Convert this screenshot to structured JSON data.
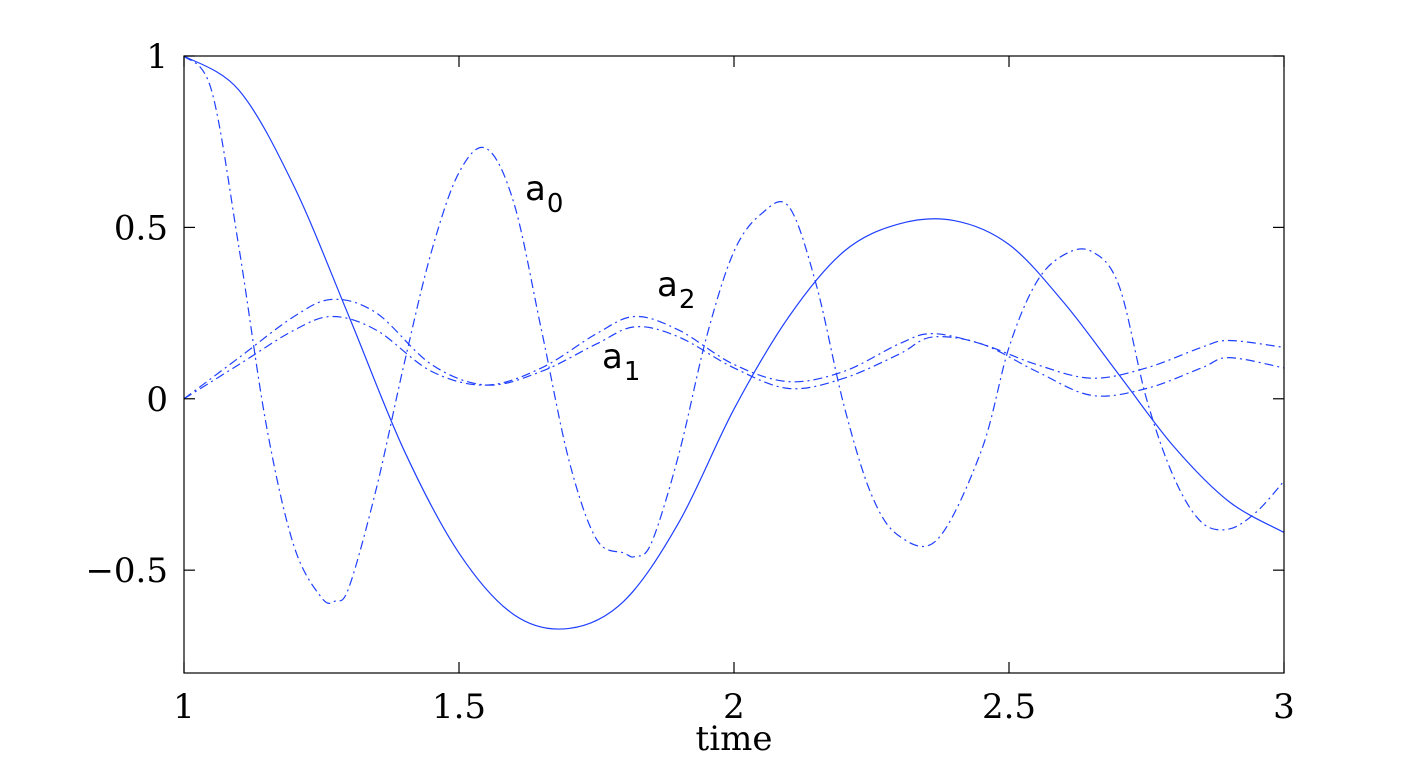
{
  "chart_data": {
    "type": "line",
    "xlabel": "time",
    "ylabel": "",
    "xlim": [
      1,
      3
    ],
    "ylim": [
      -0.8,
      1
    ],
    "xticks": [
      1,
      1.5,
      2,
      2.5,
      3
    ],
    "xtick_labels": [
      "1",
      "1.5",
      "2",
      "2.5",
      "3"
    ],
    "yticks": [
      -0.5,
      0,
      0.5,
      1
    ],
    "ytick_labels": [
      "−0.5",
      "0",
      "0.5",
      "1"
    ],
    "grid": false,
    "annotations": [
      {
        "text": "a",
        "sub": "0",
        "x": 1.62,
        "y": 0.58
      },
      {
        "text": "a",
        "sub": "2",
        "x": 1.86,
        "y": 0.3
      },
      {
        "text": "a",
        "sub": "1",
        "x": 1.76,
        "y": 0.09
      }
    ],
    "series": [
      {
        "style": "solid",
        "x": [
          1.0,
          1.1,
          1.2,
          1.3,
          1.4,
          1.5,
          1.6,
          1.7,
          1.8,
          1.9,
          2.0,
          2.1,
          2.2,
          2.3,
          2.4,
          2.5,
          2.6,
          2.7,
          2.8,
          2.9,
          3.0
        ],
        "y": [
          1.0,
          0.9,
          0.62,
          0.24,
          -0.15,
          -0.45,
          -0.63,
          -0.67,
          -0.59,
          -0.36,
          -0.03,
          0.24,
          0.43,
          0.51,
          0.52,
          0.45,
          0.28,
          0.07,
          -0.14,
          -0.3,
          -0.39
        ]
      },
      {
        "style": "dash-dot",
        "x": [
          1.0,
          1.05,
          1.1,
          1.15,
          1.2,
          1.25,
          1.275,
          1.3,
          1.35,
          1.4,
          1.45,
          1.5,
          1.55,
          1.6,
          1.65,
          1.7,
          1.75,
          1.8,
          1.82,
          1.85,
          1.9,
          1.95,
          2.0,
          2.05,
          2.1,
          2.15,
          2.2,
          2.25,
          2.3,
          2.37,
          2.45,
          2.5,
          2.55,
          2.6,
          2.65,
          2.7,
          2.75,
          2.8,
          2.85,
          2.9,
          2.95,
          3.0
        ],
        "y": [
          1.0,
          0.9,
          0.44,
          -0.08,
          -0.43,
          -0.58,
          -0.59,
          -0.55,
          -0.26,
          0.1,
          0.43,
          0.66,
          0.73,
          0.57,
          0.2,
          -0.18,
          -0.41,
          -0.45,
          -0.46,
          -0.42,
          -0.16,
          0.18,
          0.43,
          0.54,
          0.56,
          0.33,
          -0.02,
          -0.28,
          -0.4,
          -0.41,
          -0.15,
          0.15,
          0.34,
          0.42,
          0.43,
          0.33,
          0.0,
          -0.23,
          -0.36,
          -0.38,
          -0.33,
          -0.24
        ]
      },
      {
        "style": "dash-dot",
        "x": [
          1.0,
          1.1,
          1.2,
          1.27,
          1.35,
          1.45,
          1.55,
          1.65,
          1.75,
          1.82,
          1.9,
          2.0,
          2.1,
          2.2,
          2.3,
          2.36,
          2.45,
          2.55,
          2.65,
          2.75,
          2.85,
          2.9,
          3.0
        ],
        "y": [
          0.0,
          0.12,
          0.24,
          0.29,
          0.25,
          0.1,
          0.04,
          0.08,
          0.16,
          0.21,
          0.18,
          0.09,
          0.03,
          0.06,
          0.13,
          0.18,
          0.16,
          0.08,
          0.01,
          0.03,
          0.09,
          0.12,
          0.09
        ]
      },
      {
        "style": "dash-dot",
        "x": [
          1.0,
          1.1,
          1.2,
          1.27,
          1.35,
          1.45,
          1.55,
          1.65,
          1.75,
          1.82,
          1.9,
          2.0,
          2.1,
          2.2,
          2.3,
          2.36,
          2.45,
          2.55,
          2.65,
          2.75,
          2.85,
          2.9,
          3.0
        ],
        "y": [
          0.0,
          0.1,
          0.2,
          0.24,
          0.2,
          0.08,
          0.04,
          0.09,
          0.19,
          0.24,
          0.2,
          0.1,
          0.05,
          0.08,
          0.16,
          0.19,
          0.16,
          0.1,
          0.06,
          0.09,
          0.15,
          0.17,
          0.15
        ]
      }
    ]
  }
}
